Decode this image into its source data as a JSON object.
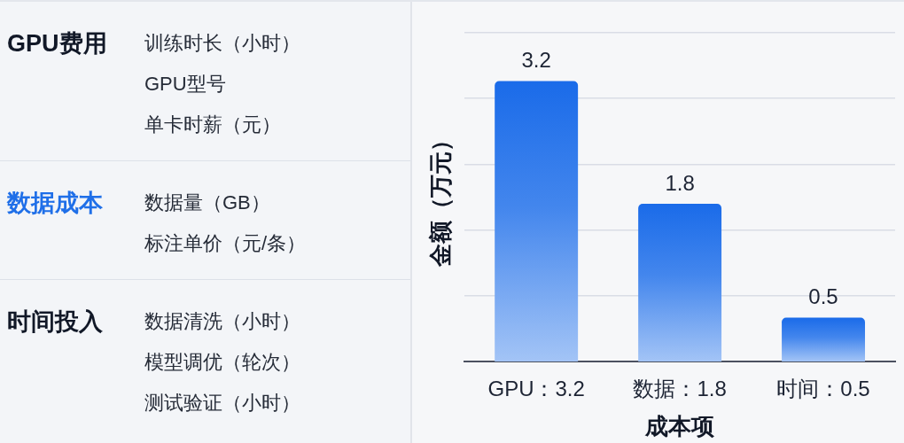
{
  "chart_data": [
    {
      "type": "other",
      "title": "GPU费用",
      "color": "#111827",
      "annotations": [
        "训练时长（小时）",
        "GPU型号",
        "单卡时薪（元）"
      ]
    },
    {
      "type": "other",
      "title": "数据成本",
      "color": "#1f6fe8",
      "annotations": [
        "数据量（GB）",
        "标注单价（元/条）"
      ]
    },
    {
      "type": "other",
      "title": "时间投入",
      "color": "#111827",
      "annotations": [
        "数据清洗（小时）",
        "模型调优（轮次）",
        "测试验证（小时）"
      ]
    },
    {
      "type": "bar",
      "categories": [
        "GPU：3.2",
        "数据：1.8",
        "时间：0.5"
      ],
      "values": [
        3.2,
        1.8,
        0.5
      ],
      "color": "#1a6be9",
      "xlabel": "成本项",
      "ylabel": "金额（万元）",
      "ylim": [
        0,
        3.75
      ],
      "yticks": [
        {
          "value": 0.75,
          "label": null
        },
        {
          "value": 1.5,
          "label": null
        },
        {
          "value": 2.25,
          "label": null
        },
        {
          "value": 3,
          "label": null
        },
        {
          "value": 3.75,
          "label": null
        }
      ],
      "grid": "y",
      "tick_labels": "x",
      "data_labels": true
    }
  ]
}
